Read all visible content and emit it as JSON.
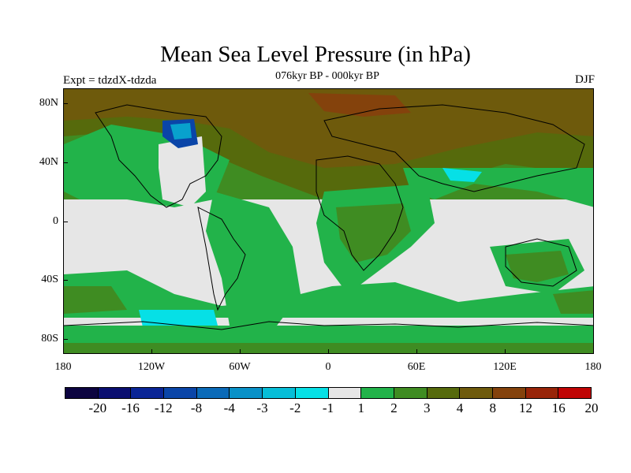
{
  "map": {
    "title": "Mean Sea Level Pressure (in hPa)",
    "subtitle": "076kyr BP - 000kyr BP",
    "experiment": "Expt = tdzdX-tdzda",
    "season": "DJF",
    "projection": "cylindrical equidistant",
    "lat_range": [
      -90,
      90
    ],
    "lon_range": [
      -180,
      180
    ],
    "lat_ticks": [
      "80N",
      "40N",
      "0",
      "40S",
      "80S"
    ],
    "lon_ticks": [
      "180",
      "120W",
      "60W",
      "0",
      "60E",
      "120E",
      "180"
    ],
    "colorbar": {
      "labels": [
        "-20",
        "-16",
        "-12",
        "-8",
        "-4",
        "-3",
        "-2",
        "-1",
        "1",
        "2",
        "3",
        "4",
        "8",
        "12",
        "16",
        "20"
      ],
      "colors": [
        "#0c0440",
        "#0a0e70",
        "#0a2596",
        "#0a45a8",
        "#0a6ab8",
        "#0891c8",
        "#06bed8",
        "#06e0e6",
        "#e6e6e6",
        "#22b34a",
        "#3f8c22",
        "#566a0c",
        "#6e5a0c",
        "#84420c",
        "#982408",
        "#c00404"
      ]
    }
  }
}
